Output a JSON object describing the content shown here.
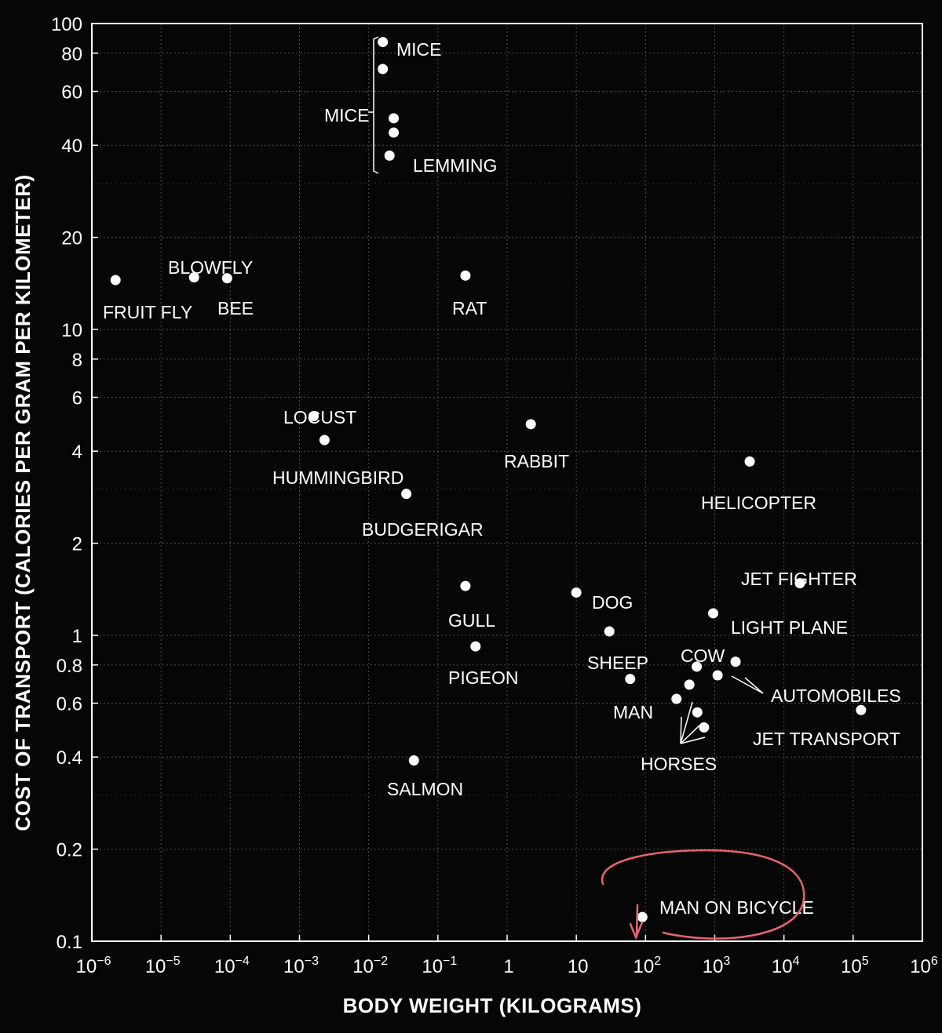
{
  "colors": {
    "background": "#060606",
    "foreground": "#ffffff",
    "annotation": "#e8636f"
  },
  "chart_data": {
    "type": "scatter",
    "xlabel": "BODY WEIGHT (KILOGRAMS)",
    "ylabel": "COST OF TRANSPORT (CALORIES PER GRAM PER KILOMETER)",
    "xscale": "log",
    "yscale": "log",
    "xlim": [
      1e-06,
      1000000
    ],
    "ylim": [
      0.1,
      100
    ],
    "grid": true,
    "x_ticks": [
      {
        "value": 1e-06,
        "base": "10",
        "exp": "−6"
      },
      {
        "value": 1e-05,
        "base": "10",
        "exp": "−5"
      },
      {
        "value": 0.0001,
        "base": "10",
        "exp": "−4"
      },
      {
        "value": 0.001,
        "base": "10",
        "exp": "−3"
      },
      {
        "value": 0.01,
        "base": "10",
        "exp": "−2"
      },
      {
        "value": 0.1,
        "base": "10",
        "exp": "−1"
      },
      {
        "value": 1,
        "base": "1",
        "exp": ""
      },
      {
        "value": 10,
        "base": "10",
        "exp": ""
      },
      {
        "value": 100,
        "base": "10",
        "exp": "2"
      },
      {
        "value": 1000,
        "base": "10",
        "exp": "3"
      },
      {
        "value": 10000,
        "base": "10",
        "exp": "4"
      },
      {
        "value": 100000,
        "base": "10",
        "exp": "5"
      },
      {
        "value": 1000000,
        "base": "10",
        "exp": "6"
      }
    ],
    "y_ticks": [
      {
        "value": 0.1,
        "label": "0.1"
      },
      {
        "value": 0.2,
        "label": "0.2"
      },
      {
        "value": 0.4,
        "label": "0.4"
      },
      {
        "value": 0.6,
        "label": "0.6"
      },
      {
        "value": 0.8,
        "label": "0.8"
      },
      {
        "value": 1,
        "label": "1"
      },
      {
        "value": 2,
        "label": "2"
      },
      {
        "value": 4,
        "label": "4"
      },
      {
        "value": 6,
        "label": "6"
      },
      {
        "value": 8,
        "label": "8"
      },
      {
        "value": 10,
        "label": "10"
      },
      {
        "value": 20,
        "label": "20"
      },
      {
        "value": 40,
        "label": "40"
      },
      {
        "value": 60,
        "label": "60"
      },
      {
        "value": 80,
        "label": "80"
      },
      {
        "value": 100,
        "label": "100"
      }
    ],
    "points": [
      {
        "x": 2.2e-06,
        "y": 14.5
      },
      {
        "x": 3e-05,
        "y": 14.8
      },
      {
        "x": 9e-05,
        "y": 14.7
      },
      {
        "x": 0.0016,
        "y": 5.2
      },
      {
        "x": 0.0023,
        "y": 4.35
      },
      {
        "x": 0.016,
        "y": 87
      },
      {
        "x": 0.016,
        "y": 71
      },
      {
        "x": 0.023,
        "y": 49
      },
      {
        "x": 0.023,
        "y": 44
      },
      {
        "x": 0.02,
        "y": 37
      },
      {
        "x": 0.035,
        "y": 2.9
      },
      {
        "x": 0.045,
        "y": 0.39
      },
      {
        "x": 0.25,
        "y": 15
      },
      {
        "x": 0.25,
        "y": 1.45
      },
      {
        "x": 0.35,
        "y": 0.92
      },
      {
        "x": 2.2,
        "y": 4.9
      },
      {
        "x": 10,
        "y": 1.38
      },
      {
        "x": 30,
        "y": 1.03
      },
      {
        "x": 60,
        "y": 0.72
      },
      {
        "x": 90,
        "y": 0.12
      },
      {
        "x": 280,
        "y": 0.62
      },
      {
        "x": 430,
        "y": 0.69
      },
      {
        "x": 550,
        "y": 0.79
      },
      {
        "x": 560,
        "y": 0.56
      },
      {
        "x": 700,
        "y": 0.5
      },
      {
        "x": 950,
        "y": 1.18
      },
      {
        "x": 1100,
        "y": 0.74
      },
      {
        "x": 2000,
        "y": 0.82
      },
      {
        "x": 3200,
        "y": 3.7
      },
      {
        "x": 17000,
        "y": 1.48
      },
      {
        "x": 130000,
        "y": 0.57
      }
    ],
    "labels": {
      "fruit_fly": "FRUIT FLY",
      "blowfly": "BLOWFLY",
      "bee": "BEE",
      "mice_top": "MICE",
      "mice_side": "MICE",
      "lemming": "LEMMING",
      "rat": "RAT",
      "locust": "LOCUST",
      "hummingbird": "HUMMINGBIRD",
      "budgerigar": "BUDGERIGAR",
      "rabbit": "RABBIT",
      "helicopter": "HELICOPTER",
      "jet_fighter": "JET FIGHTER",
      "gull": "GULL",
      "dog": "DOG",
      "light_plane": "LIGHT PLANE",
      "sheep": "SHEEP",
      "cow": "COW",
      "pigeon": "PIGEON",
      "automobiles": "AUTOMOBILES",
      "man": "MAN",
      "jet_transport": "JET TRANSPORT",
      "horses": "HORSES",
      "salmon": "SALMON",
      "man_on_bicycle": "MAN ON BICYCLE"
    }
  }
}
